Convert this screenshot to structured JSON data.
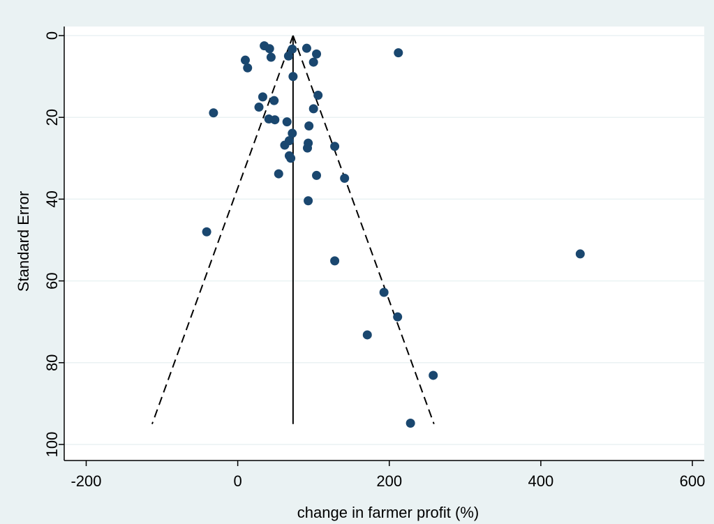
{
  "chart_data": {
    "type": "scatter",
    "title": "",
    "xlabel": "change in farmer profit (%)",
    "ylabel": "Standard Error",
    "xlim": [
      -215,
      615
    ],
    "ylim": [
      0,
      102
    ],
    "y_reversed": true,
    "grid": true,
    "legend": "none",
    "x_ticks": [
      "-200",
      "0",
      "200",
      "400",
      "600"
    ],
    "y_ticks": [
      "0",
      "20",
      "40",
      "60",
      "80",
      "100"
    ],
    "x_tick_values": [
      -200,
      0,
      200,
      400,
      600
    ],
    "y_tick_values": [
      0,
      20,
      40,
      60,
      80,
      100
    ],
    "reference_line": {
      "x": 73,
      "y_from": 0,
      "y_to": 95
    },
    "funnel_bounds": {
      "apex": [
        73,
        0
      ],
      "left_base": [
        -113,
        95
      ],
      "right_base": [
        259,
        95
      ]
    },
    "points": [
      {
        "x": 35,
        "y": 2.5
      },
      {
        "x": 42,
        "y": 3.2
      },
      {
        "x": 72,
        "y": 3.3
      },
      {
        "x": 91,
        "y": 3.1
      },
      {
        "x": 104,
        "y": 4.5
      },
      {
        "x": 212,
        "y": 4.2
      },
      {
        "x": 44,
        "y": 5.3
      },
      {
        "x": 67,
        "y": 5.0
      },
      {
        "x": 10,
        "y": 6.0
      },
      {
        "x": 100,
        "y": 6.5
      },
      {
        "x": 13,
        "y": 7.9
      },
      {
        "x": 73,
        "y": 10.0
      },
      {
        "x": 106,
        "y": 14.6
      },
      {
        "x": 33,
        "y": 15.0
      },
      {
        "x": 48,
        "y": 15.9
      },
      {
        "x": 28,
        "y": 17.5
      },
      {
        "x": 100,
        "y": 17.9
      },
      {
        "x": -32,
        "y": 18.9
      },
      {
        "x": 41,
        "y": 20.4
      },
      {
        "x": 49,
        "y": 20.6
      },
      {
        "x": 65,
        "y": 21.1
      },
      {
        "x": 94,
        "y": 22.1
      },
      {
        "x": 72,
        "y": 23.9
      },
      {
        "x": 68,
        "y": 25.7
      },
      {
        "x": 93,
        "y": 26.3
      },
      {
        "x": 62,
        "y": 26.8
      },
      {
        "x": 128,
        "y": 27.1
      },
      {
        "x": 92,
        "y": 27.5
      },
      {
        "x": 68,
        "y": 29.4
      },
      {
        "x": 70,
        "y": 30.0
      },
      {
        "x": 54,
        "y": 33.8
      },
      {
        "x": 104,
        "y": 34.2
      },
      {
        "x": 141,
        "y": 34.9
      },
      {
        "x": 93,
        "y": 40.4
      },
      {
        "x": -41,
        "y": 48.0
      },
      {
        "x": 452,
        "y": 53.4
      },
      {
        "x": 128,
        "y": 55.1
      },
      {
        "x": 193,
        "y": 62.8
      },
      {
        "x": 211,
        "y": 68.8
      },
      {
        "x": 171,
        "y": 73.2
      },
      {
        "x": 258,
        "y": 83.1
      },
      {
        "x": 228,
        "y": 94.8
      }
    ]
  },
  "colors": {
    "background": "#eaf2f3",
    "plot_background": "#ffffff",
    "gridline": "#eaf2f3",
    "marker": "#1a476f",
    "line": "#000000"
  }
}
